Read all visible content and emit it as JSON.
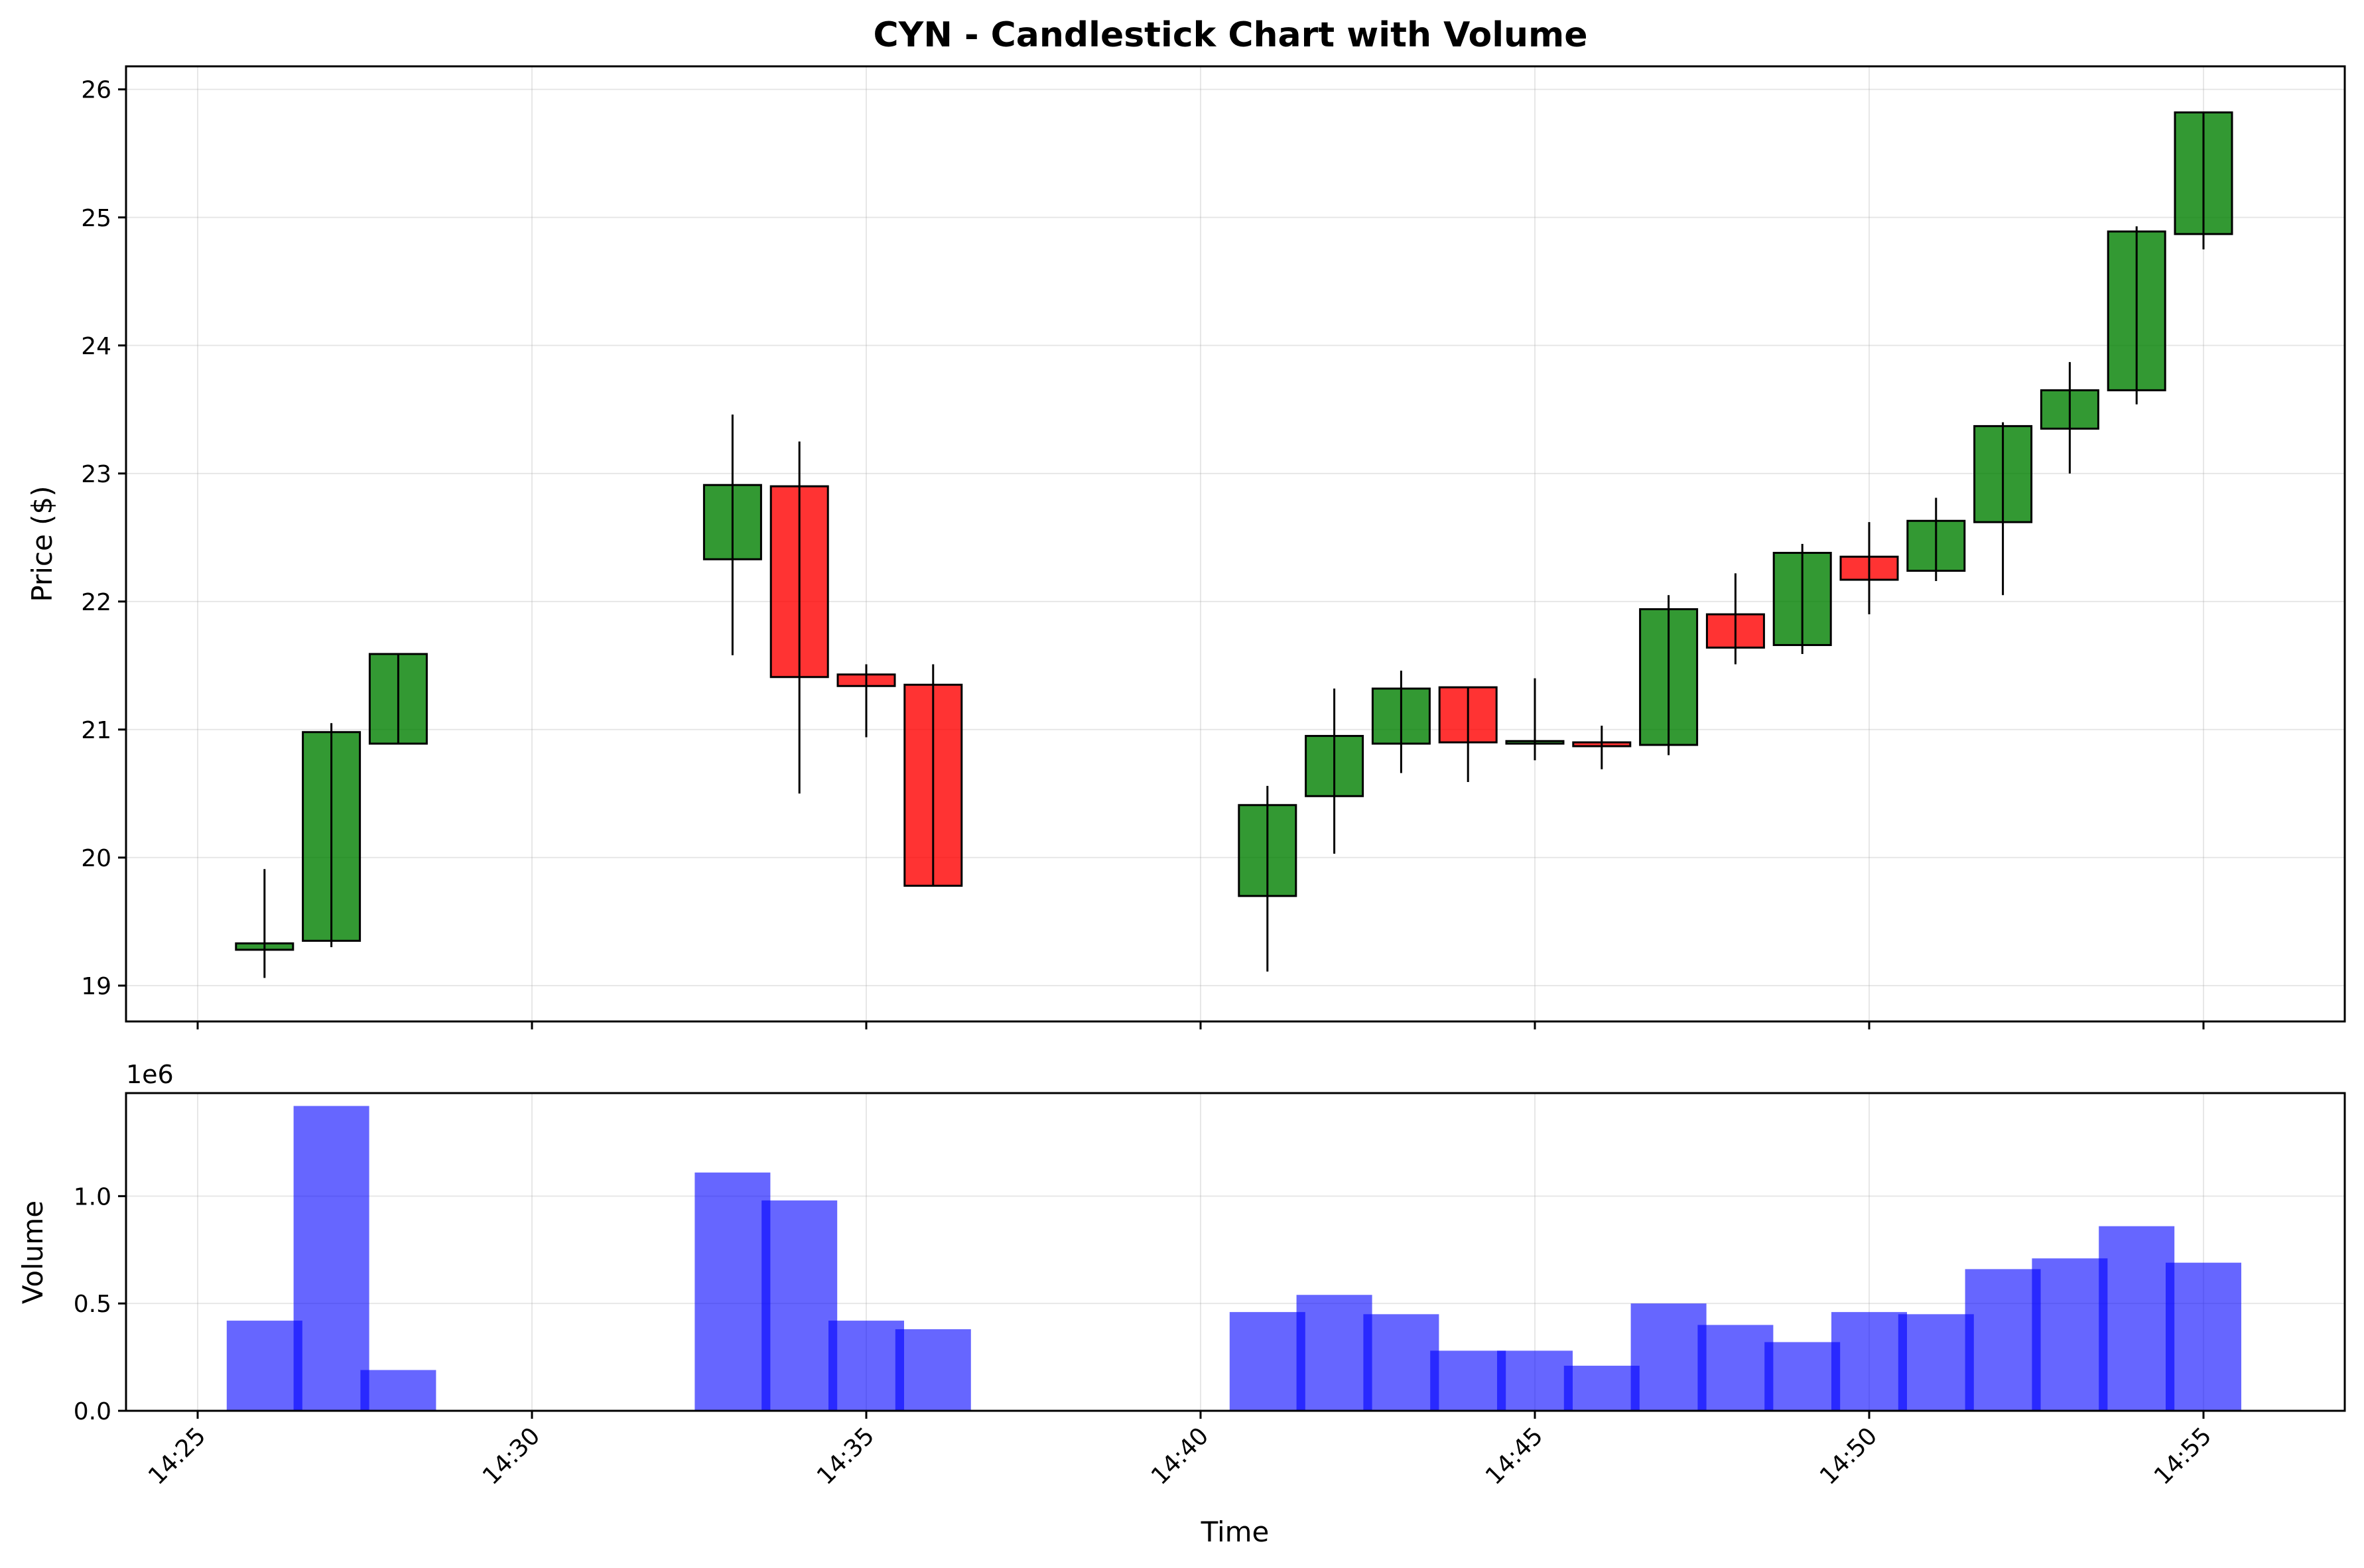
{
  "chart_data": [
    {
      "type": "candlestick",
      "title": "CYN - Candlestick Chart with Volume",
      "ylabel": "Price ($)",
      "ylim": [
        18.72,
        26.18
      ],
      "yticks": [
        19,
        20,
        21,
        22,
        23,
        24,
        25,
        26
      ],
      "grid": true,
      "colors": {
        "up": "#008000",
        "down": "#ff0000",
        "edge": "#000000"
      },
      "candles": [
        {
          "time": "14:26",
          "open": 19.28,
          "high": 19.91,
          "low": 19.06,
          "close": 19.33
        },
        {
          "time": "14:27",
          "open": 19.35,
          "high": 21.05,
          "low": 19.3,
          "close": 20.98
        },
        {
          "time": "14:28",
          "open": 20.89,
          "high": 21.59,
          "low": 20.89,
          "close": 21.59
        },
        {
          "time": "14:33",
          "open": 22.33,
          "high": 23.46,
          "low": 21.58,
          "close": 22.91
        },
        {
          "time": "14:34",
          "open": 22.9,
          "high": 23.25,
          "low": 20.5,
          "close": 21.41
        },
        {
          "time": "14:35",
          "open": 21.43,
          "high": 21.51,
          "low": 20.94,
          "close": 21.34
        },
        {
          "time": "14:36",
          "open": 21.35,
          "high": 21.51,
          "low": 19.78,
          "close": 19.78
        },
        {
          "time": "14:41",
          "open": 19.7,
          "high": 20.56,
          "low": 19.11,
          "close": 20.41
        },
        {
          "time": "14:42",
          "open": 20.48,
          "high": 21.32,
          "low": 20.03,
          "close": 20.95
        },
        {
          "time": "14:43",
          "open": 20.89,
          "high": 21.46,
          "low": 20.66,
          "close": 21.32
        },
        {
          "time": "14:44",
          "open": 21.33,
          "high": 21.33,
          "low": 20.59,
          "close": 20.9
        },
        {
          "time": "14:45",
          "open": 20.89,
          "high": 21.4,
          "low": 20.76,
          "close": 20.91
        },
        {
          "time": "14:46",
          "open": 20.9,
          "high": 21.03,
          "low": 20.69,
          "close": 20.87
        },
        {
          "time": "14:47",
          "open": 20.88,
          "high": 22.05,
          "low": 20.8,
          "close": 21.94
        },
        {
          "time": "14:48",
          "open": 21.9,
          "high": 22.22,
          "low": 21.51,
          "close": 21.64
        },
        {
          "time": "14:49",
          "open": 21.66,
          "high": 22.45,
          "low": 21.59,
          "close": 22.38
        },
        {
          "time": "14:50",
          "open": 22.35,
          "high": 22.62,
          "low": 21.9,
          "close": 22.17
        },
        {
          "time": "14:51",
          "open": 22.24,
          "high": 22.81,
          "low": 22.16,
          "close": 22.63
        },
        {
          "time": "14:52",
          "open": 22.62,
          "high": 23.4,
          "low": 22.05,
          "close": 23.37
        },
        {
          "time": "14:53",
          "open": 23.35,
          "high": 23.87,
          "low": 23.0,
          "close": 23.65
        },
        {
          "time": "14:54",
          "open": 23.65,
          "high": 24.93,
          "low": 23.54,
          "close": 24.89
        },
        {
          "time": "14:55",
          "open": 24.87,
          "high": 25.82,
          "low": 24.75,
          "close": 25.82
        }
      ]
    },
    {
      "type": "bar",
      "ylabel": "Volume",
      "xlabel": "Time",
      "offset_label": "1e6",
      "ylim": [
        0,
        1.48
      ],
      "yticks": [
        0.0,
        0.5,
        1.0
      ],
      "ytick_labels": [
        "0.0",
        "0.5",
        "1.0"
      ],
      "xticks": [
        "14:25",
        "14:30",
        "14:35",
        "14:40",
        "14:45",
        "14:50",
        "14:55"
      ],
      "grid": true,
      "color": "#0000ff",
      "bars": [
        {
          "time": "14:26",
          "value": 0.42
        },
        {
          "time": "14:27",
          "value": 1.42
        },
        {
          "time": "14:28",
          "value": 0.19
        },
        {
          "time": "14:33",
          "value": 1.11
        },
        {
          "time": "14:34",
          "value": 0.98
        },
        {
          "time": "14:35",
          "value": 0.42
        },
        {
          "time": "14:36",
          "value": 0.38
        },
        {
          "time": "14:41",
          "value": 0.46
        },
        {
          "time": "14:42",
          "value": 0.54
        },
        {
          "time": "14:43",
          "value": 0.45
        },
        {
          "time": "14:44",
          "value": 0.28
        },
        {
          "time": "14:45",
          "value": 0.28
        },
        {
          "time": "14:46",
          "value": 0.21
        },
        {
          "time": "14:47",
          "value": 0.5
        },
        {
          "time": "14:48",
          "value": 0.4
        },
        {
          "time": "14:49",
          "value": 0.32
        },
        {
          "time": "14:50",
          "value": 0.46
        },
        {
          "time": "14:51",
          "value": 0.45
        },
        {
          "time": "14:52",
          "value": 0.66
        },
        {
          "time": "14:53",
          "value": 0.71
        },
        {
          "time": "14:54",
          "value": 0.86
        },
        {
          "time": "14:55",
          "value": 0.69
        }
      ]
    }
  ]
}
